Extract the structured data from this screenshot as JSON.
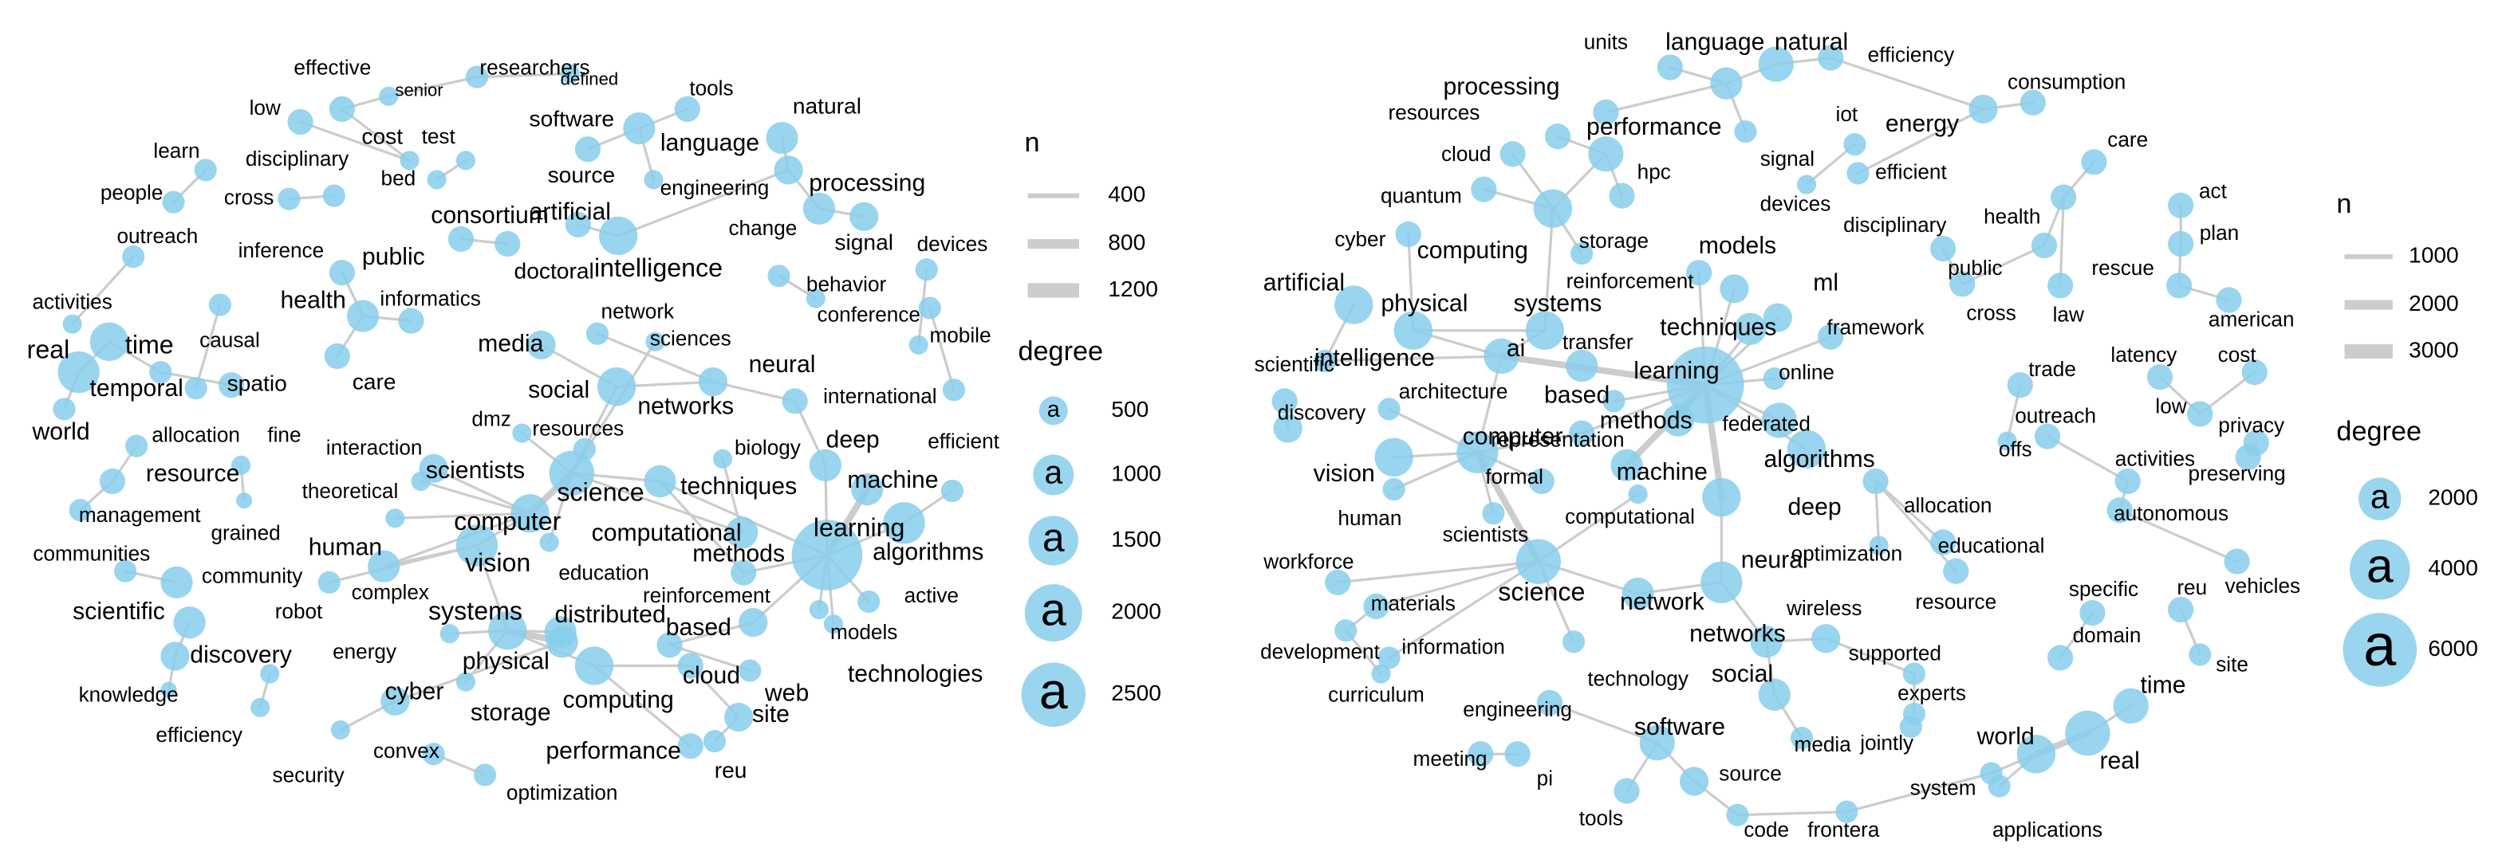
{
  "networks": [
    {
      "nodes": [
        "effective",
        "senior",
        "researchers",
        "defined",
        "tools",
        "low",
        "cost",
        "software",
        "source",
        "test",
        "bed",
        "learn",
        "people",
        "disciplinary",
        "cross",
        "natural",
        "language",
        "processing",
        "engineering",
        "artificial",
        "intelligence",
        "consortium",
        "doctoral",
        "signal",
        "devices",
        "change",
        "behavior",
        "conference",
        "mobile",
        "international",
        "outreach",
        "inference",
        "public",
        "informatics",
        "health",
        "care",
        "activities",
        "time",
        "real",
        "temporal",
        "world",
        "spatio",
        "causal",
        "allocation",
        "fine",
        "resource",
        "management",
        "grained",
        "communities",
        "community",
        "scientific",
        "discovery",
        "knowledge",
        "energy",
        "efficiency",
        "security",
        "cyber",
        "convex",
        "optimization",
        "theoretical",
        "interaction",
        "human",
        "robot",
        "complex",
        "scientists",
        "computer",
        "vision",
        "dmz",
        "resources",
        "network",
        "media",
        "sciences",
        "social",
        "networks",
        "neural",
        "science",
        "techniques",
        "computational",
        "education",
        "biology",
        "deep",
        "machine",
        "efficient",
        "learning",
        "methods",
        "algorithms",
        "active",
        "reinforcement",
        "models",
        "technologies",
        "based",
        "distributed",
        "systems",
        "physical",
        "storage",
        "computing",
        "web",
        "cloud",
        "site",
        "performance",
        "reu"
      ],
      "legend": {
        "n": {
          "title": "n",
          "values": [
            400,
            800,
            1200
          ]
        },
        "degree": {
          "title": "degree",
          "symbol": "a",
          "values": [
            500,
            1000,
            1500,
            2000,
            2500
          ]
        }
      }
    },
    {
      "nodes": [
        "units",
        "language",
        "natural",
        "efficiency",
        "processing",
        "consumption",
        "energy",
        "resources",
        "performance",
        "iot",
        "efficient",
        "cloud",
        "hpc",
        "signal",
        "devices",
        "care",
        "act",
        "quantum",
        "disciplinary",
        "health",
        "plan",
        "rescue",
        "cyber",
        "computing",
        "storage",
        "models",
        "public",
        "american",
        "artificial",
        "physical",
        "systems",
        "reinforcement",
        "ml",
        "cross",
        "law",
        "intelligence",
        "ai",
        "transfer",
        "techniques",
        "framework",
        "trade",
        "latency",
        "cost",
        "scientific",
        "learning",
        "based",
        "architecture",
        "online",
        "low",
        "privacy",
        "discovery",
        "methods",
        "computer",
        "representation",
        "federated",
        "outreach",
        "offs",
        "activities",
        "preserving",
        "vision",
        "machine",
        "algorithms",
        "formal",
        "deep",
        "allocation",
        "autonomous",
        "human",
        "scientists",
        "computational",
        "educational",
        "optimization",
        "neural",
        "workforce",
        "science",
        "network",
        "vehicles",
        "resource",
        "materials",
        "specific",
        "reu",
        "networks",
        "wireless",
        "development",
        "information",
        "domain",
        "supported",
        "site",
        "technology",
        "social",
        "curriculum",
        "experts",
        "time",
        "engineering",
        "software",
        "media",
        "jointly",
        "world",
        "meeting",
        "pi",
        "real",
        "source",
        "system",
        "tools",
        "applications",
        "code",
        "frontera"
      ],
      "legend": {
        "n": {
          "title": "n",
          "values": [
            1000,
            2000,
            3000
          ]
        },
        "degree": {
          "title": "degree",
          "symbol": "a",
          "values": [
            2000,
            4000,
            6000
          ]
        }
      }
    }
  ]
}
